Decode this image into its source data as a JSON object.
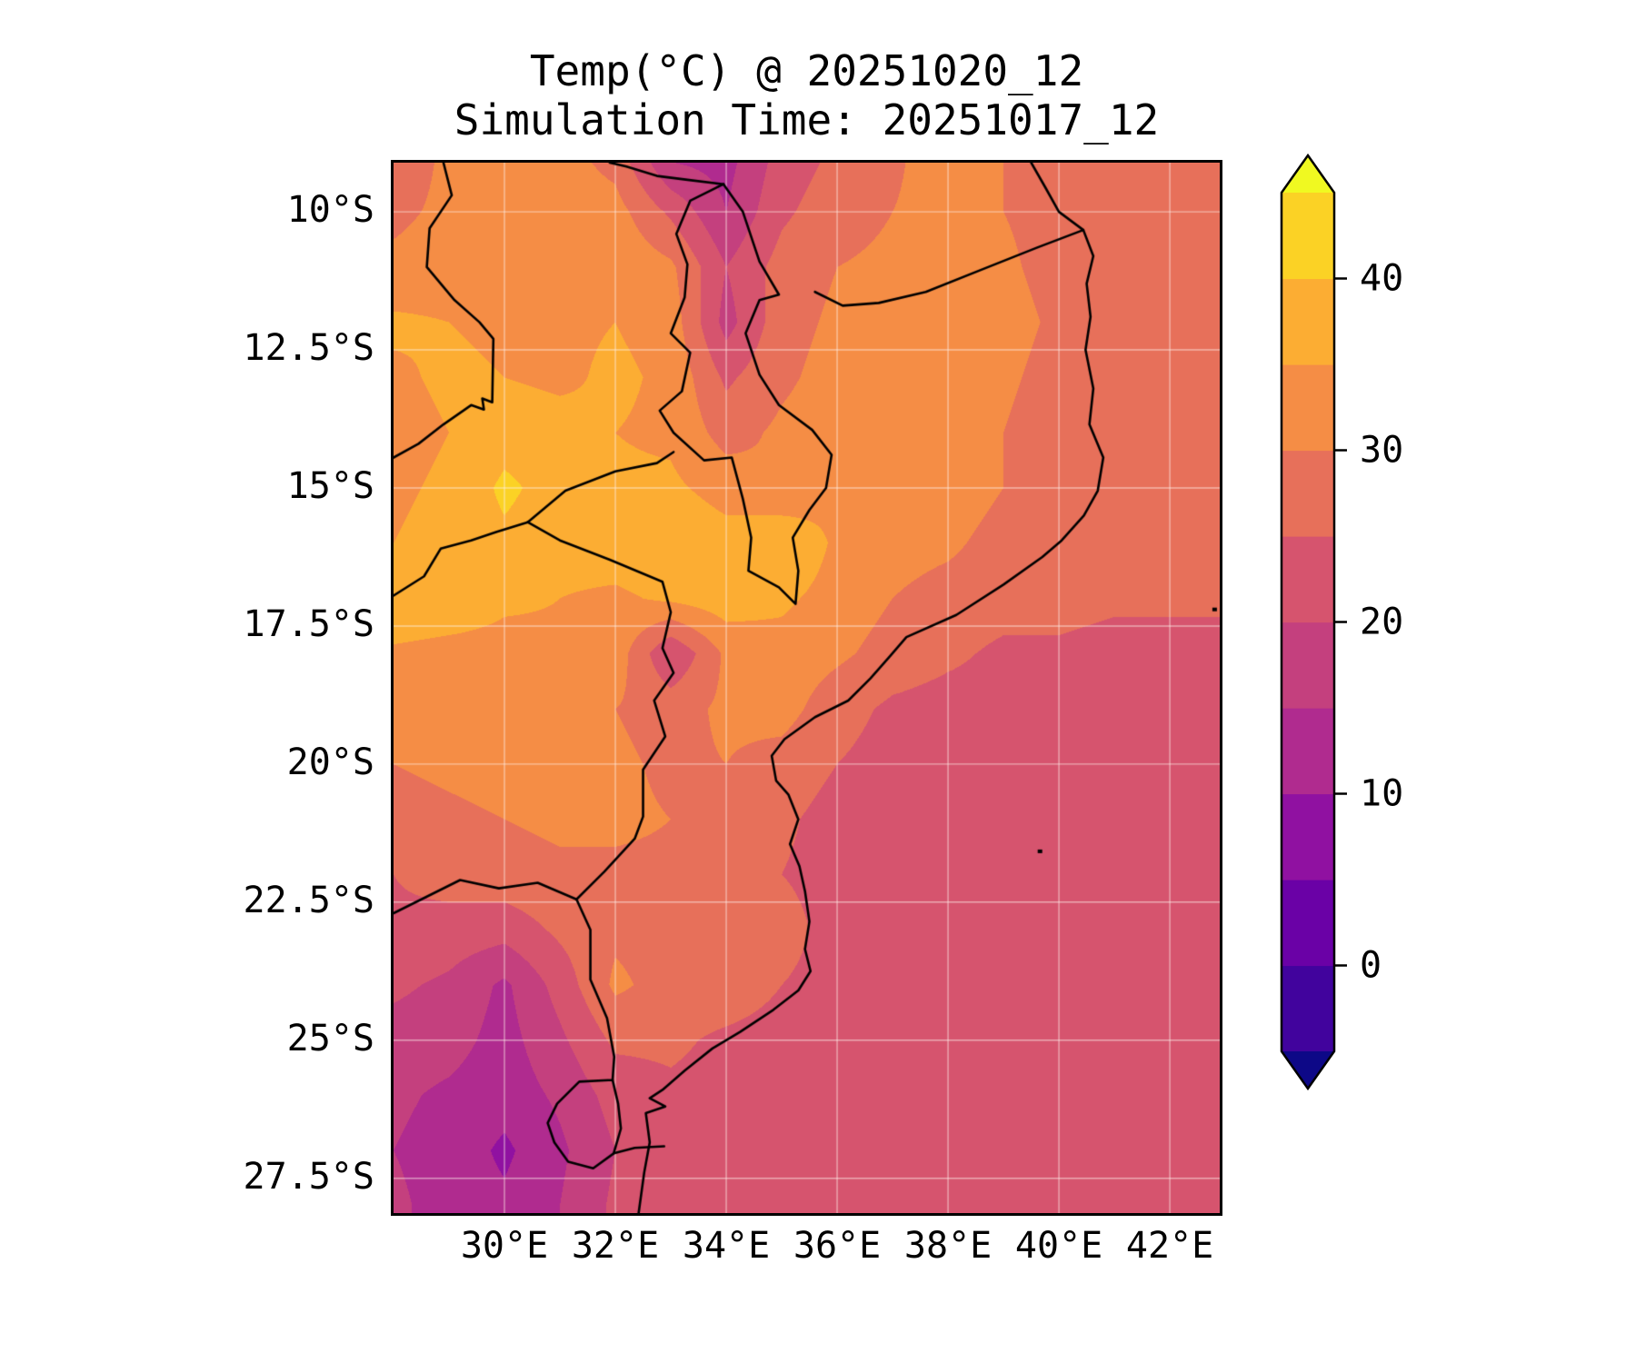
{
  "title": {
    "line1": "Temp(°C) @ 20251020_12",
    "line2": "Simulation Time: 20251017_12"
  },
  "axes": {
    "x_ticks": [
      {
        "value": 30,
        "label": "30°E"
      },
      {
        "value": 32,
        "label": "32°E"
      },
      {
        "value": 34,
        "label": "34°E"
      },
      {
        "value": 36,
        "label": "36°E"
      },
      {
        "value": 38,
        "label": "38°E"
      },
      {
        "value": 40,
        "label": "40°E"
      },
      {
        "value": 42,
        "label": "42°E"
      }
    ],
    "y_ticks": [
      {
        "value": 10.0,
        "label": "10°S"
      },
      {
        "value": 12.5,
        "label": "12.5°S"
      },
      {
        "value": 15.0,
        "label": "15°S"
      },
      {
        "value": 17.5,
        "label": "17.5°S"
      },
      {
        "value": 20.0,
        "label": "20°S"
      },
      {
        "value": 22.5,
        "label": "22.5°S"
      },
      {
        "value": 25.0,
        "label": "25°S"
      },
      {
        "value": 27.5,
        "label": "27.5°S"
      }
    ],
    "gridline_color": "rgba(255,240,235,0.55)",
    "frame_color": "#000000"
  },
  "colorbar": {
    "extend": "both",
    "levels": [
      -5,
      0,
      5,
      10,
      15,
      20,
      25,
      30,
      35,
      40,
      45
    ],
    "colors": [
      "#0d0887",
      "#41039d",
      "#6a01a6",
      "#9011a1",
      "#b02b8f",
      "#c4407e",
      "#d6546e",
      "#e7705a",
      "#f58d45",
      "#fcad33",
      "#fbd225",
      "#f0f921"
    ],
    "ticks": [
      {
        "value": 40,
        "label": "40"
      },
      {
        "value": 30,
        "label": "30"
      },
      {
        "value": 20,
        "label": "20"
      },
      {
        "value": 10,
        "label": "10"
      },
      {
        "value": 0,
        "label": "0"
      }
    ]
  },
  "chart_data": {
    "type": "heatmap",
    "variable": "Temp",
    "unit": "°C",
    "valid_time": "20251020_12",
    "simulation_time": "20251017_12",
    "lon_range": [
      28.0,
      42.9
    ],
    "lat_range": [
      9.11,
      28.13
    ],
    "lon_start": 28,
    "lon_step": 1,
    "nx": 16,
    "lat_start": 9,
    "lat_step": 1,
    "ny": 21,
    "values": [
      [
        27,
        31,
        31,
        32,
        28,
        14,
        13,
        22,
        26,
        29,
        33,
        30,
        27,
        27,
        27,
        27
      ],
      [
        29,
        31,
        32,
        33,
        32,
        24,
        15,
        24,
        28,
        30,
        32,
        30,
        28,
        27,
        27,
        27
      ],
      [
        31,
        32,
        33,
        33,
        34,
        31,
        20,
        27,
        30,
        31,
        34,
        31,
        28,
        27,
        27,
        27
      ],
      [
        36,
        35,
        34,
        34,
        35,
        33,
        18,
        28,
        31,
        33,
        35,
        32,
        29,
        27,
        27,
        27
      ],
      [
        34,
        36,
        35,
        34,
        36,
        34,
        24,
        29,
        32,
        33,
        34,
        31,
        28,
        27,
        27,
        27
      ],
      [
        33,
        35,
        38,
        37,
        35,
        34,
        28,
        31,
        33,
        34,
        33,
        30,
        27,
        27,
        27,
        27
      ],
      [
        34,
        36,
        41,
        38,
        36,
        36,
        33,
        30,
        34,
        34,
        33,
        30,
        27,
        27,
        27,
        27
      ],
      [
        35,
        37,
        39,
        37,
        38,
        39,
        37,
        40,
        34,
        32,
        31,
        28,
        27,
        27,
        27,
        27
      ],
      [
        40,
        39,
        36,
        35,
        34,
        36,
        38,
        36,
        33,
        30,
        28,
        27,
        27,
        26,
        26,
        26
      ],
      [
        34,
        33,
        33,
        34,
        33,
        20,
        31,
        33,
        31,
        28,
        26,
        24,
        24,
        23,
        23,
        23
      ],
      [
        31,
        32,
        33,
        33,
        30,
        28,
        31,
        32,
        27,
        24,
        23,
        23,
        23,
        23,
        23,
        23
      ],
      [
        30,
        31,
        32,
        32,
        31,
        29,
        30,
        28,
        25,
        23,
        23,
        23,
        23,
        23,
        23,
        23
      ],
      [
        28,
        29,
        30,
        31,
        31,
        30,
        29,
        26,
        23,
        23,
        23,
        23,
        23,
        23,
        23,
        23
      ],
      [
        25,
        27,
        28,
        29,
        29,
        29,
        28,
        25,
        23,
        23,
        23,
        23,
        23,
        23,
        23,
        23
      ],
      [
        24,
        23,
        22,
        26,
        29,
        28,
        28,
        27,
        23,
        23,
        23,
        23,
        23,
        23,
        23,
        23
      ],
      [
        21,
        19,
        14,
        22,
        31,
        28,
        28,
        25,
        23,
        23,
        23,
        23,
        23,
        23,
        23,
        23
      ],
      [
        18,
        17,
        13,
        19,
        26,
        26,
        24,
        23,
        23,
        23,
        23,
        23,
        23,
        23,
        23,
        23
      ],
      [
        16,
        14,
        12,
        16,
        22,
        24,
        23,
        23,
        23,
        23,
        23,
        23,
        23,
        23,
        23,
        23
      ],
      [
        15,
        13,
        9,
        14,
        20,
        23,
        23,
        23,
        23,
        23,
        23,
        23,
        23,
        23,
        23,
        23
      ],
      [
        16,
        13,
        11,
        15,
        21,
        23,
        23,
        23,
        23,
        23,
        23,
        23,
        23,
        23,
        23,
        23
      ],
      [
        16,
        13,
        12,
        15,
        21,
        23,
        23,
        23,
        23,
        23,
        23,
        23,
        23,
        23,
        23,
        23
      ]
    ]
  },
  "borders": {
    "coast": [
      [
        39.5,
        9.11
      ],
      [
        39.75,
        9.55
      ],
      [
        40.0,
        10.0
      ],
      [
        40.44,
        10.33
      ],
      [
        40.62,
        10.8
      ],
      [
        40.5,
        11.3
      ],
      [
        40.57,
        11.9
      ],
      [
        40.48,
        12.5
      ],
      [
        40.62,
        13.2
      ],
      [
        40.55,
        13.85
      ],
      [
        40.8,
        14.45
      ],
      [
        40.7,
        15.05
      ],
      [
        40.45,
        15.5
      ],
      [
        40.05,
        15.95
      ],
      [
        39.7,
        16.25
      ],
      [
        39.0,
        16.75
      ],
      [
        38.15,
        17.3
      ],
      [
        37.25,
        17.7
      ],
      [
        36.95,
        18.05
      ],
      [
        36.6,
        18.45
      ],
      [
        36.2,
        18.85
      ],
      [
        35.6,
        19.15
      ],
      [
        35.05,
        19.55
      ],
      [
        34.82,
        19.85
      ],
      [
        34.9,
        20.3
      ],
      [
        35.12,
        20.55
      ],
      [
        35.3,
        21.0
      ],
      [
        35.15,
        21.45
      ],
      [
        35.32,
        21.85
      ],
      [
        35.42,
        22.3
      ],
      [
        35.5,
        22.85
      ],
      [
        35.42,
        23.35
      ],
      [
        35.52,
        23.75
      ],
      [
        35.3,
        24.1
      ],
      [
        34.85,
        24.45
      ],
      [
        34.25,
        24.85
      ],
      [
        33.75,
        25.15
      ],
      [
        33.25,
        25.55
      ],
      [
        32.85,
        25.9
      ],
      [
        32.62,
        26.05
      ],
      [
        32.9,
        26.2
      ],
      [
        32.55,
        26.32
      ],
      [
        32.62,
        26.85
      ],
      [
        32.52,
        27.4
      ],
      [
        32.42,
        28.13
      ]
    ],
    "ruvuma": [
      [
        40.44,
        10.33
      ],
      [
        39.6,
        10.65
      ],
      [
        38.6,
        11.05
      ],
      [
        37.6,
        11.45
      ],
      [
        36.75,
        11.65
      ],
      [
        36.1,
        11.7
      ],
      [
        35.6,
        11.45
      ]
    ],
    "malawi": [
      [
        33.95,
        9.5
      ],
      [
        33.35,
        9.8
      ],
      [
        33.1,
        10.4
      ],
      [
        33.3,
        10.95
      ],
      [
        33.25,
        11.55
      ],
      [
        33.0,
        12.2
      ],
      [
        33.35,
        12.55
      ],
      [
        33.2,
        13.25
      ],
      [
        32.8,
        13.6
      ],
      [
        33.05,
        14.0
      ],
      [
        33.6,
        14.5
      ],
      [
        34.1,
        14.45
      ],
      [
        34.3,
        15.2
      ],
      [
        34.45,
        15.9
      ],
      [
        34.4,
        16.5
      ],
      [
        34.95,
        16.8
      ],
      [
        35.25,
        17.1
      ],
      [
        35.3,
        16.5
      ],
      [
        35.2,
        15.9
      ],
      [
        35.5,
        15.4
      ],
      [
        35.8,
        15.0
      ],
      [
        35.9,
        14.4
      ],
      [
        35.55,
        13.95
      ],
      [
        34.95,
        13.5
      ],
      [
        34.6,
        12.95
      ],
      [
        34.35,
        12.2
      ],
      [
        34.6,
        11.6
      ],
      [
        34.95,
        11.5
      ],
      [
        34.6,
        10.9
      ],
      [
        34.3,
        10.0
      ],
      [
        33.95,
        9.5
      ]
    ],
    "tanzania_zambia": [
      [
        33.95,
        9.5
      ],
      [
        33.3,
        9.42
      ],
      [
        32.75,
        9.35
      ],
      [
        32.2,
        9.18
      ],
      [
        31.9,
        9.11
      ]
    ],
    "drc_zambia": [
      [
        28.9,
        9.11
      ],
      [
        29.05,
        9.7
      ],
      [
        28.65,
        10.3
      ],
      [
        28.6,
        11.0
      ],
      [
        29.1,
        11.6
      ],
      [
        29.55,
        12.0
      ],
      [
        29.8,
        12.3
      ],
      [
        29.78,
        13.45
      ],
      [
        29.6,
        13.38
      ],
      [
        29.63,
        13.58
      ],
      [
        29.4,
        13.5
      ],
      [
        28.9,
        13.85
      ],
      [
        28.45,
        14.2
      ],
      [
        28.0,
        14.45
      ]
    ],
    "zambia_zimbabwe": [
      [
        28.0,
        16.95
      ],
      [
        28.55,
        16.6
      ],
      [
        28.85,
        16.1
      ],
      [
        29.4,
        15.95
      ],
      [
        29.85,
        15.8
      ],
      [
        30.42,
        15.62
      ]
    ],
    "zambia_mozambique": [
      [
        30.42,
        15.62
      ],
      [
        31.1,
        15.05
      ],
      [
        32.0,
        14.7
      ],
      [
        32.75,
        14.55
      ],
      [
        33.05,
        14.35
      ]
    ],
    "zimbabwe_mozambique": [
      [
        30.42,
        15.62
      ],
      [
        31.0,
        15.95
      ],
      [
        31.9,
        16.3
      ],
      [
        32.85,
        16.7
      ],
      [
        33.0,
        17.25
      ],
      [
        32.85,
        17.9
      ],
      [
        33.05,
        18.35
      ],
      [
        32.7,
        18.85
      ],
      [
        32.9,
        19.5
      ],
      [
        32.5,
        20.1
      ],
      [
        32.5,
        20.95
      ],
      [
        32.35,
        21.35
      ],
      [
        31.8,
        21.95
      ],
      [
        31.3,
        22.45
      ]
    ],
    "limpopo": [
      [
        31.3,
        22.45
      ],
      [
        30.6,
        22.15
      ],
      [
        29.9,
        22.25
      ],
      [
        29.2,
        22.1
      ],
      [
        28.6,
        22.4
      ],
      [
        28.0,
        22.7
      ]
    ],
    "sa_mozambique": [
      [
        31.3,
        22.45
      ],
      [
        31.55,
        23.0
      ],
      [
        31.55,
        23.9
      ],
      [
        31.85,
        24.6
      ],
      [
        31.98,
        25.3
      ],
      [
        31.95,
        25.72
      ]
    ],
    "eswatini": [
      [
        31.95,
        25.72
      ],
      [
        31.35,
        25.75
      ],
      [
        30.95,
        26.15
      ],
      [
        30.78,
        26.5
      ],
      [
        30.9,
        26.85
      ],
      [
        31.15,
        27.2
      ],
      [
        31.6,
        27.32
      ],
      [
        31.97,
        27.05
      ],
      [
        32.1,
        26.6
      ],
      [
        32.05,
        26.15
      ],
      [
        31.95,
        25.72
      ]
    ],
    "sa_mozambique_south": [
      [
        31.97,
        27.05
      ],
      [
        32.35,
        26.95
      ],
      [
        32.88,
        26.92
      ]
    ]
  },
  "islands": [
    [
      42.8,
      17.2
    ],
    [
      39.65,
      21.58
    ]
  ]
}
